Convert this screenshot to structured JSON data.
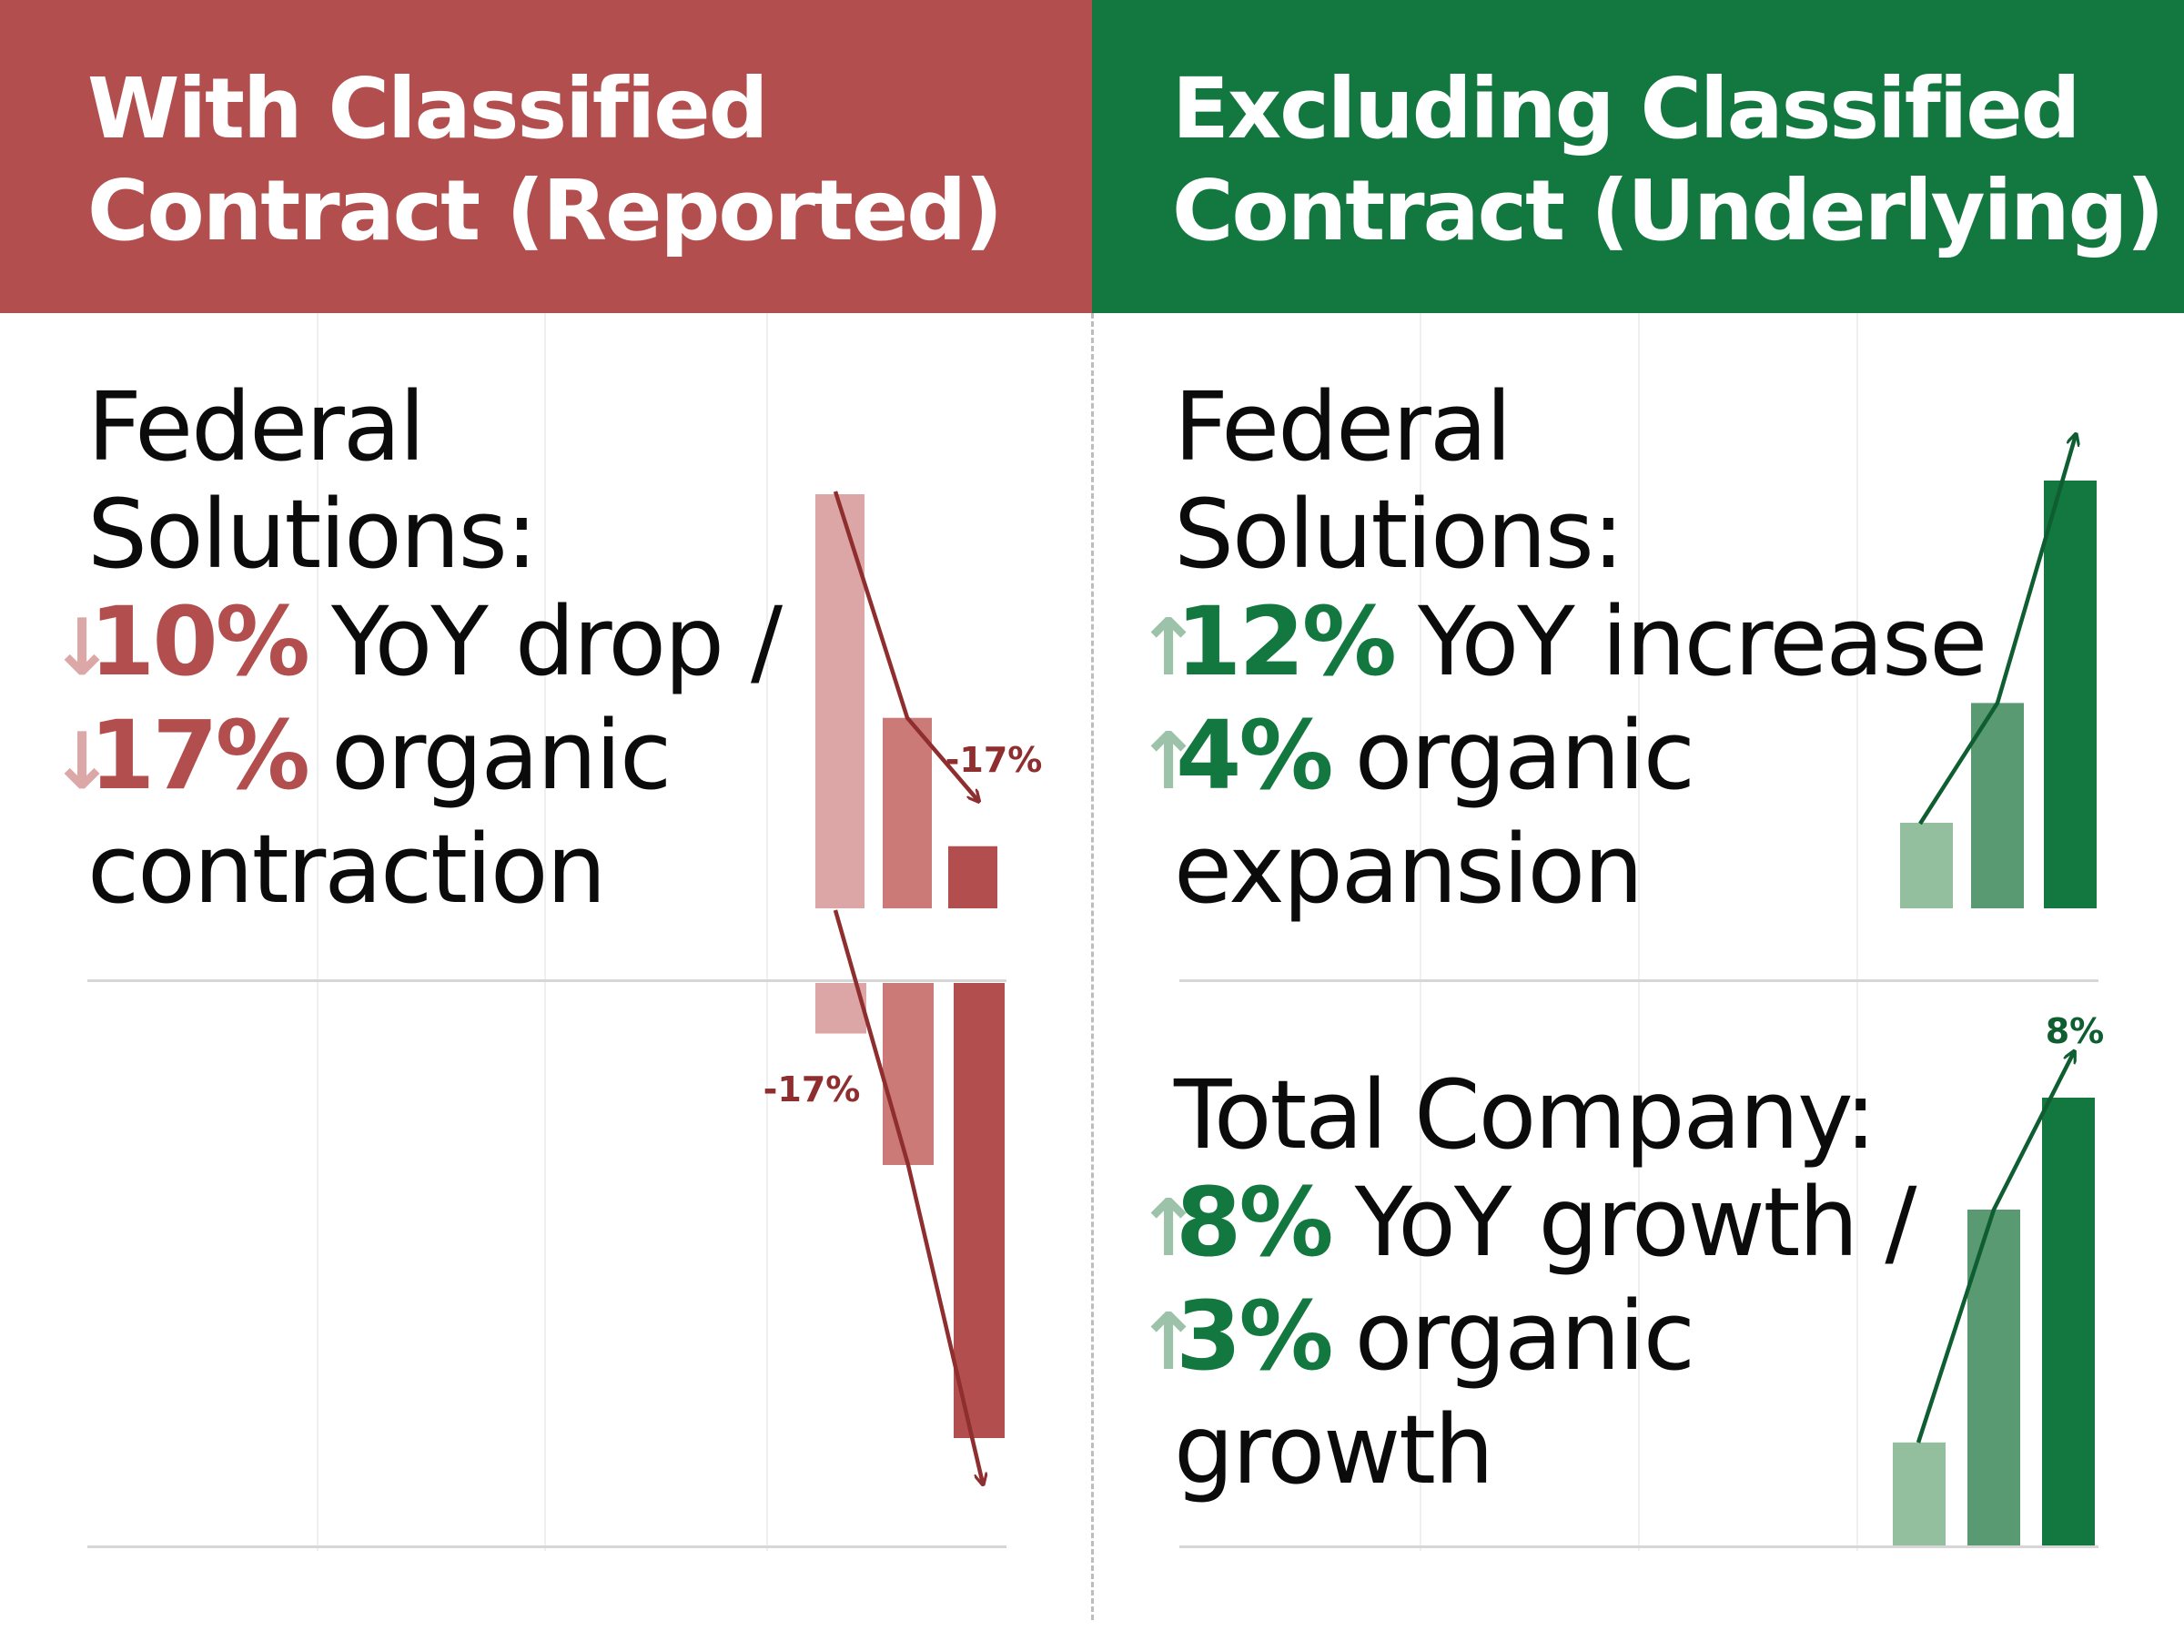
{
  "left_panel": {
    "header": {
      "title_line1": "With Classified",
      "title_line2": "Contract (Reported)"
    },
    "federal": {
      "line1": "Federal",
      "line2": "Solutions:",
      "metric1": {
        "arrow": "↓",
        "value": "10%",
        "text": "YoY drop /"
      },
      "metric2": {
        "arrow": "↓",
        "value": "17%",
        "text": "organic"
      },
      "line5": "contraction"
    }
  },
  "right_panel": {
    "header": {
      "title_line1": "Excluding Classified",
      "title_line2": "Contract (Underlying)"
    },
    "federal": {
      "line1": "Federal",
      "line2": "Solutions:",
      "metric1": {
        "arrow": "↑",
        "value": "12%",
        "text": "YoY increase"
      },
      "metric2": {
        "arrow": "↑",
        "value": "4%",
        "text": "organic"
      },
      "line5": "expansion"
    },
    "total": {
      "line1": "Total Company:",
      "metric1": {
        "arrow": "↑",
        "value": "8%",
        "text": "YoY growth /"
      },
      "metric2": {
        "arrow": "↑",
        "value": "3%",
        "text": "organic"
      },
      "line4": "growth"
    }
  },
  "colors": {
    "red": "#b24e4e",
    "red_dark": "#8e2e2e",
    "red_light": "#dda6a6",
    "red_mid": "#cc7a78",
    "green": "#13783f",
    "green_dark": "#0f5e31",
    "green_light": "#93bf9f",
    "green_mid": "#5a9a73"
  },
  "chart_data": [
    {
      "type": "bar",
      "panel": "left-federal",
      "direction": "declining",
      "series": [
        {
          "values": [
            100,
            46,
            15
          ]
        }
      ],
      "annotation": "-17%"
    },
    {
      "type": "bar",
      "panel": "left-total",
      "direction": "declining-downward",
      "series": [
        {
          "values": [
            10,
            36,
            90
          ]
        }
      ],
      "annotation": "-17%"
    },
    {
      "type": "bar",
      "panel": "right-federal",
      "direction": "rising",
      "series": [
        {
          "values": [
            20,
            48,
            100
          ]
        }
      ],
      "annotation": ""
    },
    {
      "type": "bar",
      "panel": "right-total",
      "direction": "rising",
      "series": [
        {
          "values": [
            23,
            75,
            100
          ]
        }
      ],
      "annotation": "8%"
    }
  ]
}
